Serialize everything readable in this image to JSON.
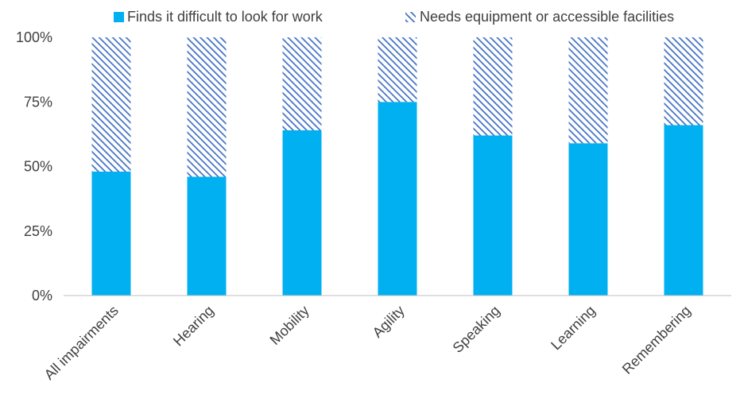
{
  "chart_data": {
    "type": "bar",
    "stacked": "percent",
    "categories": [
      "All impairments",
      "Hearing",
      "Mobility",
      "Agility",
      "Speaking",
      "Learning",
      "Remembering"
    ],
    "series": [
      {
        "name": "Finds it difficult to look for work",
        "values": [
          48,
          46,
          64,
          75,
          62,
          59,
          66
        ],
        "color": "#00b0f0",
        "pattern": "solid"
      },
      {
        "name": "Needs equipment or accessible facilities",
        "values": [
          52,
          54,
          36,
          25,
          38,
          41,
          34
        ],
        "color": "#4472c4",
        "pattern": "diagonal-hatch"
      }
    ],
    "y_ticks": [
      "0%",
      "25%",
      "50%",
      "75%",
      "100%"
    ],
    "ylim": [
      0,
      100
    ],
    "grid": false,
    "legend_position": "top"
  }
}
